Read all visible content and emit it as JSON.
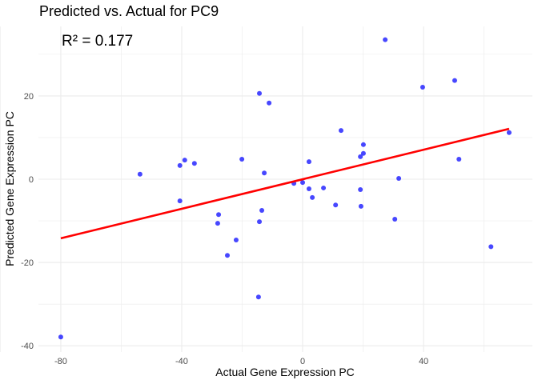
{
  "chart_data": {
    "type": "scatter",
    "title": "Predicted vs. Actual for PC9",
    "xlabel": "Actual Gene Expression PC",
    "ylabel": "Predicted Gene Expression PC",
    "xlim": [
      -87.4,
      76
    ],
    "ylim": [
      -41.5,
      36.7
    ],
    "xticks": [
      -80,
      -40,
      0,
      40
    ],
    "yticks": [
      -40,
      -20,
      0,
      20
    ],
    "grid": true,
    "annotation": "R² = 0.177",
    "point_color": "#0000FF",
    "line_color": "#FF0000",
    "points": [
      [
        -80,
        -37.9
      ],
      [
        -53.8,
        1.2
      ],
      [
        -40.6,
        3.3
      ],
      [
        -39,
        4.6
      ],
      [
        -35.8,
        3.8
      ],
      [
        -40.6,
        -5.2
      ],
      [
        -20.1,
        4.8
      ],
      [
        -14.3,
        20.6
      ],
      [
        -11.1,
        18.3
      ],
      [
        -12.7,
        1.5
      ],
      [
        -27.8,
        -8.5
      ],
      [
        -28.1,
        -10.6
      ],
      [
        -22,
        -14.6
      ],
      [
        -24.9,
        -18.3
      ],
      [
        -13.5,
        -7.5
      ],
      [
        -14.3,
        -10.2
      ],
      [
        -14.6,
        -28.3
      ],
      [
        -2.9,
        -1.0
      ],
      [
        0,
        -0.8
      ],
      [
        2.1,
        4.2
      ],
      [
        2.1,
        -2.3
      ],
      [
        3.2,
        -4.4
      ],
      [
        6.9,
        -2.1
      ],
      [
        12.7,
        11.7
      ],
      [
        10.9,
        -6.2
      ],
      [
        19.1,
        5.4
      ],
      [
        20.1,
        8.3
      ],
      [
        20.1,
        6.2
      ],
      [
        19.1,
        -2.5
      ],
      [
        19.3,
        -6.5
      ],
      [
        27.3,
        33.5
      ],
      [
        31.8,
        0.2
      ],
      [
        30.5,
        -9.6
      ],
      [
        39.7,
        22.1
      ],
      [
        50.3,
        23.7
      ],
      [
        51.7,
        4.8
      ],
      [
        62.3,
        -16.2
      ],
      [
        68.3,
        11.2
      ]
    ],
    "fit_line": [
      [
        -80,
        -14.2
      ],
      [
        68.3,
        12.1
      ]
    ]
  }
}
